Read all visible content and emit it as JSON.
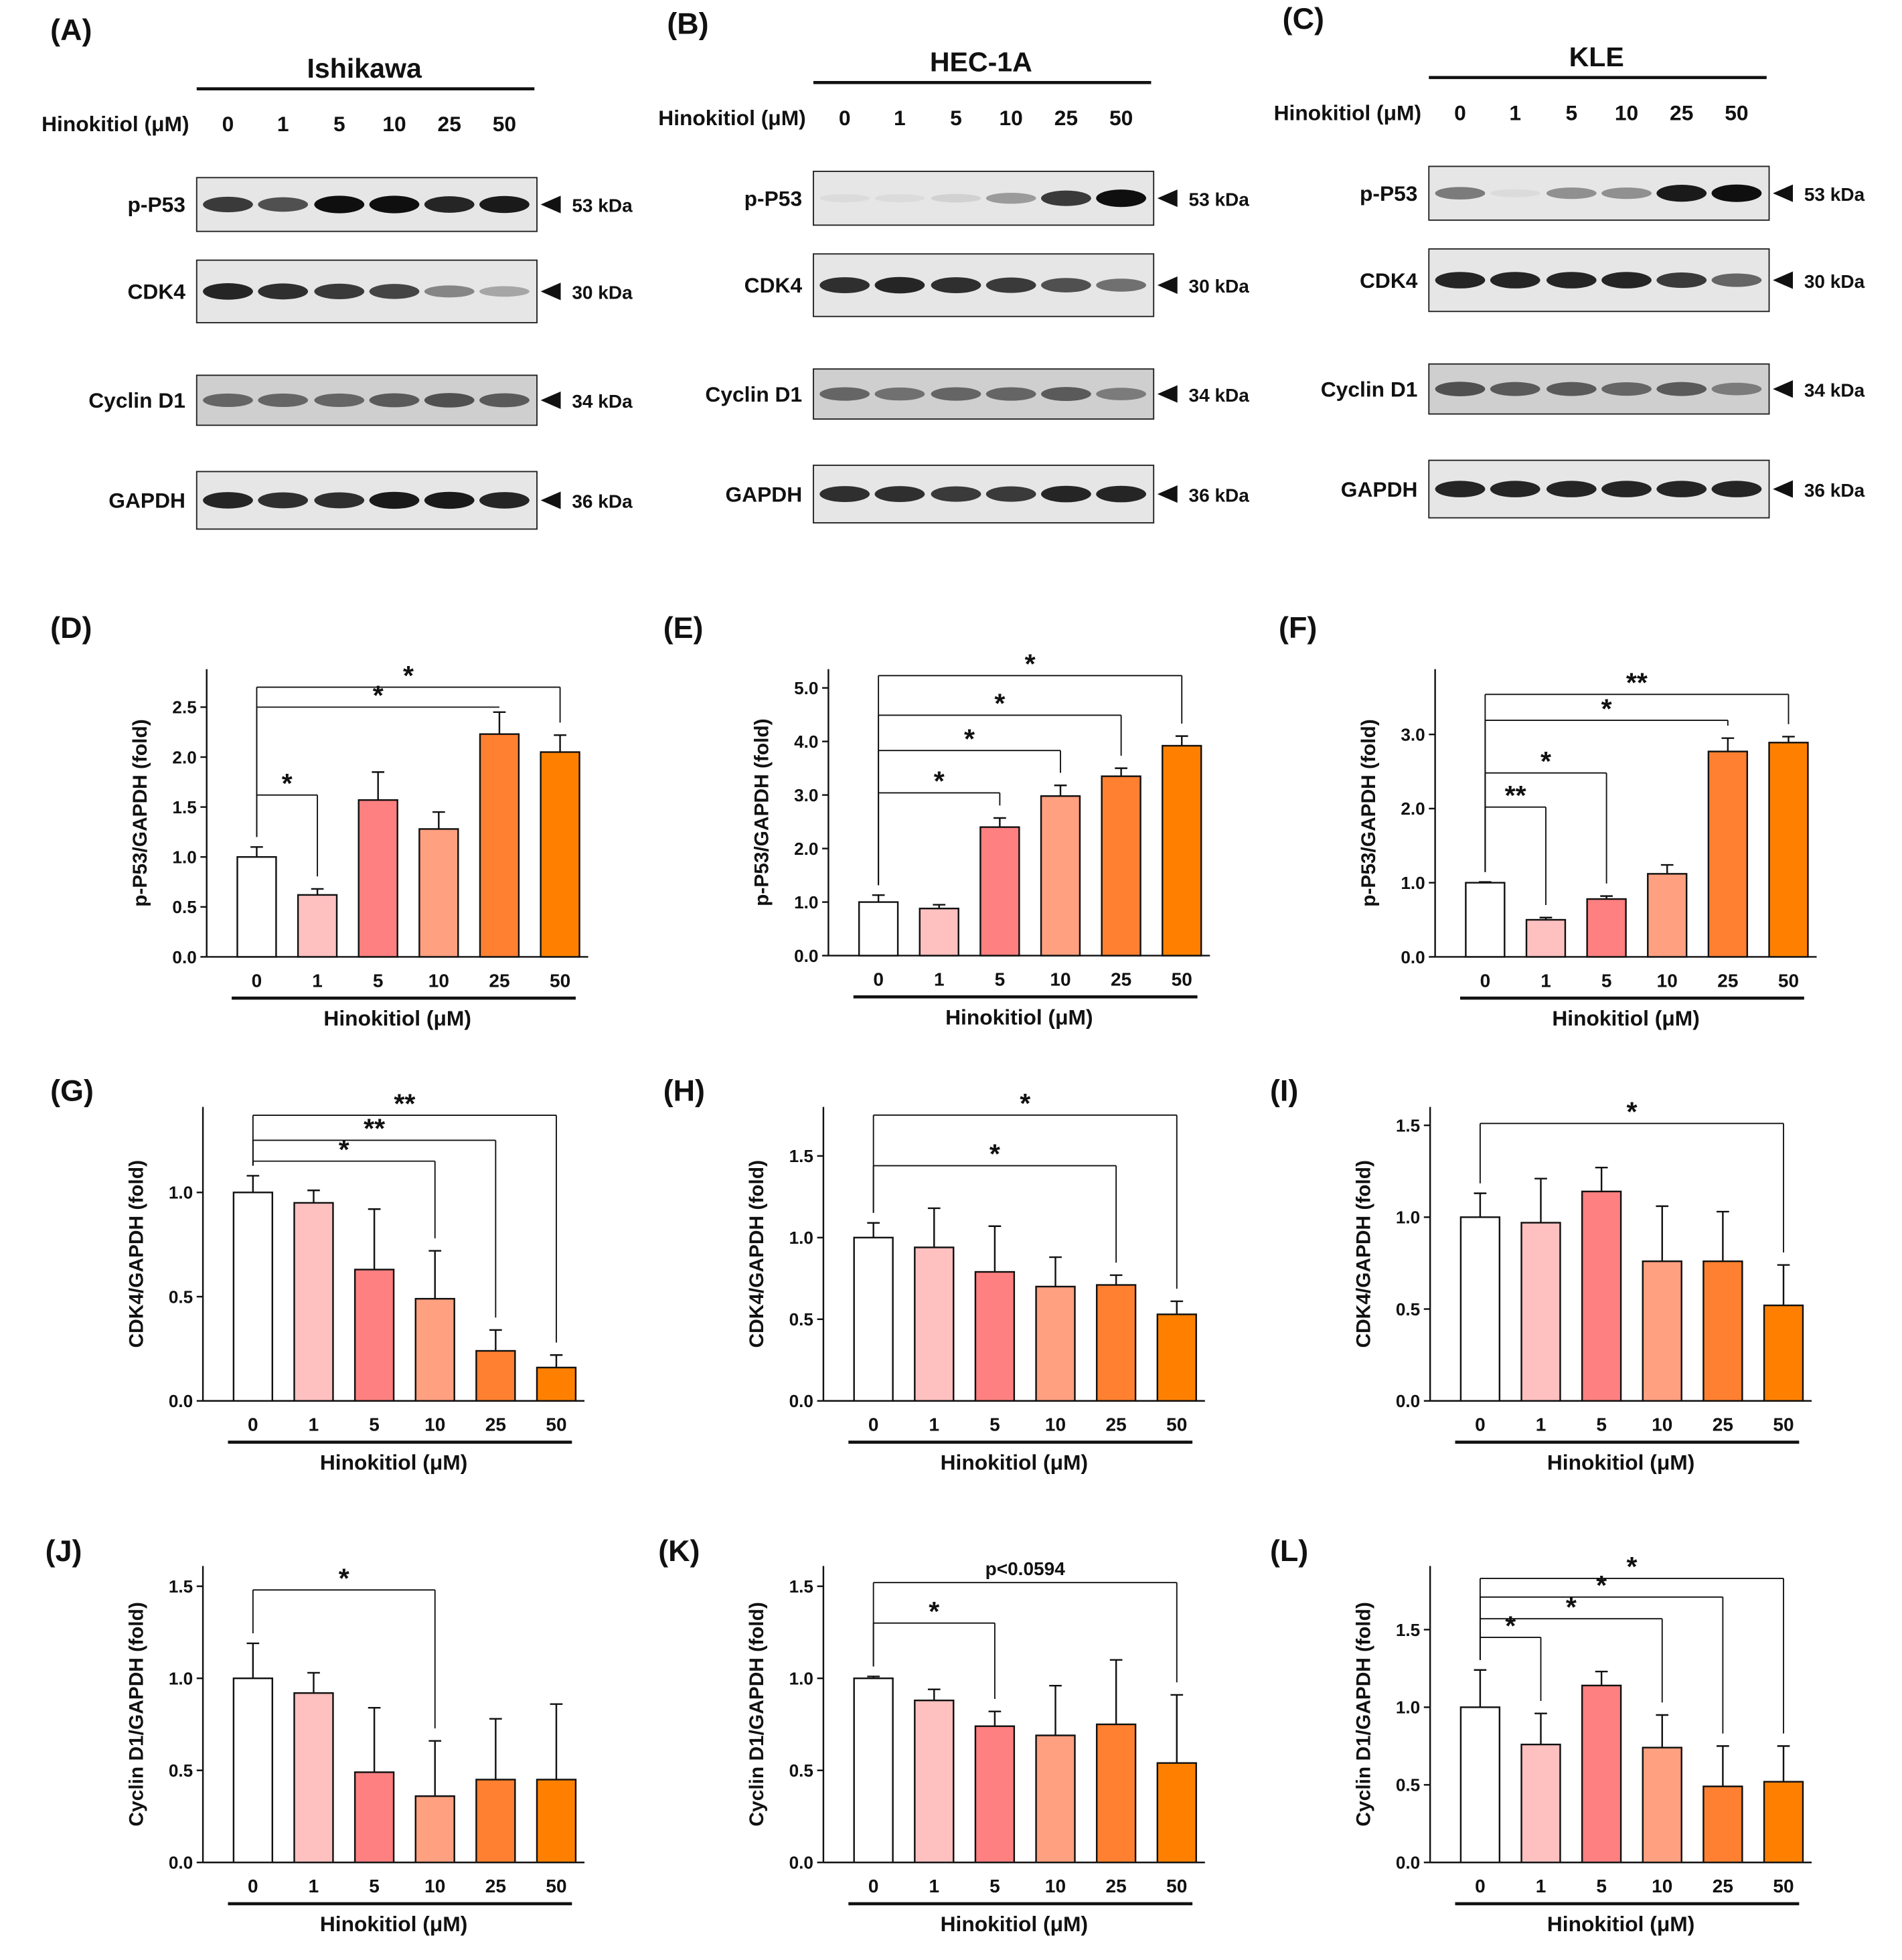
{
  "colors": [
    "#FFFFFF",
    "#FFC0C0",
    "#FF8080",
    "#FFA080",
    "#FF8030",
    "#FF8000"
  ],
  "blots": [
    {
      "panel": "(A)",
      "cell_line": "Ishikawa",
      "dose_label": "Hinokitiol (μM)",
      "doses": [
        "0",
        "1",
        "5",
        "10",
        "25",
        "50"
      ],
      "rows": [
        {
          "protein": "p-P53",
          "size": "53 kDa",
          "band_intensity": [
            0.8,
            0.7,
            1,
            1,
            0.9,
            0.95
          ]
        },
        {
          "protein": "CDK4",
          "size": "30 kDa",
          "band_intensity": [
            0.9,
            0.85,
            0.8,
            0.75,
            0.45,
            0.3
          ]
        },
        {
          "protein": "Cyclin D1",
          "size": "34 kDa",
          "band_intensity": [
            0.6,
            0.6,
            0.6,
            0.65,
            0.7,
            0.65
          ]
        },
        {
          "protein": "GAPDH",
          "size": "36 kDa",
          "band_intensity": [
            0.9,
            0.85,
            0.85,
            0.95,
            0.95,
            0.9
          ]
        }
      ]
    },
    {
      "panel": "(B)",
      "cell_line": "HEC-1A",
      "dose_label": "Hinokitiol (μM)",
      "doses": [
        "0",
        "1",
        "5",
        "10",
        "25",
        "50"
      ],
      "rows": [
        {
          "protein": "p-P53",
          "size": "53 kDa",
          "band_intensity": [
            0.05,
            0.05,
            0.1,
            0.35,
            0.8,
            1
          ]
        },
        {
          "protein": "CDK4",
          "size": "30 kDa",
          "band_intensity": [
            0.85,
            0.9,
            0.85,
            0.8,
            0.7,
            0.55
          ]
        },
        {
          "protein": "Cyclin D1",
          "size": "34 kDa",
          "band_intensity": [
            0.6,
            0.55,
            0.6,
            0.6,
            0.65,
            0.5
          ]
        },
        {
          "protein": "GAPDH",
          "size": "36 kDa",
          "band_intensity": [
            0.85,
            0.85,
            0.8,
            0.8,
            0.9,
            0.9
          ]
        }
      ]
    },
    {
      "panel": "(C)",
      "cell_line": "KLE",
      "dose_label": "Hinokitiol (μM)",
      "doses": [
        "0",
        "1",
        "5",
        "10",
        "25",
        "50"
      ],
      "rows": [
        {
          "protein": "p-P53",
          "size": "53 kDa",
          "band_intensity": [
            0.5,
            0.05,
            0.4,
            0.4,
            0.95,
            1
          ]
        },
        {
          "protein": "CDK4",
          "size": "30 kDa",
          "band_intensity": [
            0.9,
            0.9,
            0.9,
            0.9,
            0.8,
            0.6
          ]
        },
        {
          "protein": "Cyclin D1",
          "size": "34 kDa",
          "band_intensity": [
            0.7,
            0.65,
            0.65,
            0.6,
            0.65,
            0.5
          ]
        },
        {
          "protein": "GAPDH",
          "size": "36 kDa",
          "band_intensity": [
            0.9,
            0.9,
            0.9,
            0.9,
            0.9,
            0.9
          ]
        }
      ]
    }
  ],
  "chart_data": [
    {
      "panel": "(D)",
      "type": "bar",
      "categories": [
        "0",
        "1",
        "5",
        "10",
        "25",
        "50"
      ],
      "values": [
        1.0,
        0.62,
        1.57,
        1.28,
        2.23,
        2.05
      ],
      "errors": [
        0.1,
        0.06,
        0.28,
        0.17,
        0.22,
        0.17
      ],
      "ylabel": "p-P53/GAPDH (fold)",
      "xlabel": "Hinokitiol (μM)",
      "ylim": [
        0,
        2.88
      ],
      "yticks": [
        "0.0",
        "0.5",
        "1.0",
        "1.5",
        "2.0",
        "2.5"
      ],
      "ytick_values": [
        0,
        0.5,
        1,
        1.5,
        2,
        2.5
      ],
      "significance": [
        {
          "from": 0,
          "to": 1,
          "y": 1.62,
          "label": "*"
        },
        {
          "from": 0,
          "to": 4,
          "y": 2.5,
          "label": "*",
          "open": true
        },
        {
          "from": 0,
          "to": 5,
          "y": 2.7,
          "label": "*"
        }
      ]
    },
    {
      "panel": "(E)",
      "type": "bar",
      "categories": [
        "0",
        "1",
        "5",
        "10",
        "25",
        "50"
      ],
      "values": [
        1.0,
        0.88,
        2.4,
        2.98,
        3.35,
        3.92
      ],
      "errors": [
        0.13,
        0.07,
        0.17,
        0.2,
        0.15,
        0.18
      ],
      "ylabel": "p-P53/GAPDH (fold)",
      "xlabel": "Hinokitiol (μM)",
      "ylim": [
        0,
        5.35
      ],
      "yticks": [
        "0.0",
        "1.0",
        "2.0",
        "3.0",
        "4.0",
        "5.0"
      ],
      "ytick_values": [
        0,
        1,
        2,
        3,
        4,
        5
      ],
      "significance": [
        {
          "from": 0,
          "to": 2,
          "y": 3.04,
          "label": "*"
        },
        {
          "from": 0,
          "to": 3,
          "y": 3.83,
          "label": "*"
        },
        {
          "from": 0,
          "to": 4,
          "y": 4.49,
          "label": "*"
        },
        {
          "from": 0,
          "to": 5,
          "y": 5.23,
          "label": "*"
        }
      ]
    },
    {
      "panel": "(F)",
      "type": "bar",
      "categories": [
        "0",
        "1",
        "5",
        "10",
        "25",
        "50"
      ],
      "values": [
        1.0,
        0.5,
        0.78,
        1.12,
        2.77,
        2.89
      ],
      "errors": [
        0.01,
        0.03,
        0.04,
        0.12,
        0.18,
        0.08
      ],
      "ylabel": "p-P53/GAPDH (fold)",
      "xlabel": "Hinokitiol (μM)",
      "ylim": [
        0,
        3.88
      ],
      "yticks": [
        "0.0",
        "1.0",
        "2.0",
        "3.0"
      ],
      "ytick_values": [
        0,
        1,
        2,
        3
      ],
      "significance": [
        {
          "from": 0,
          "to": 1,
          "y": 2.02,
          "label": "**"
        },
        {
          "from": 0,
          "to": 2,
          "y": 2.48,
          "label": "*"
        },
        {
          "from": 0,
          "to": 4,
          "y": 3.19,
          "label": "*"
        },
        {
          "from": 0,
          "to": 5,
          "y": 3.54,
          "label": "**"
        }
      ]
    },
    {
      "panel": "(G)",
      "type": "bar",
      "categories": [
        "0",
        "1",
        "5",
        "10",
        "25",
        "50"
      ],
      "values": [
        1.0,
        0.95,
        0.63,
        0.49,
        0.24,
        0.16
      ],
      "errors": [
        0.08,
        0.06,
        0.29,
        0.23,
        0.1,
        0.06
      ],
      "ylabel": "CDK4/GAPDH (fold)",
      "xlabel": "Hinokitiol (μM)",
      "ylim": [
        0,
        1.41
      ],
      "yticks": [
        "0.0",
        "0.5",
        "1.0"
      ],
      "ytick_values": [
        0,
        0.5,
        1
      ],
      "significance": [
        {
          "from": 0,
          "to": 3,
          "y": 1.15,
          "label": "*"
        },
        {
          "from": 0,
          "to": 4,
          "y": 1.25,
          "label": "**"
        },
        {
          "from": 0,
          "to": 5,
          "y": 1.37,
          "label": "**"
        }
      ]
    },
    {
      "panel": "(H)",
      "type": "bar",
      "categories": [
        "0",
        "1",
        "5",
        "10",
        "25",
        "50"
      ],
      "values": [
        1.0,
        0.94,
        0.79,
        0.7,
        0.71,
        0.53
      ],
      "errors": [
        0.09,
        0.24,
        0.28,
        0.18,
        0.06,
        0.08
      ],
      "ylabel": "CDK4/GAPDH (fold)",
      "xlabel": "Hinokitiol (μM)",
      "ylim": [
        0,
        1.8
      ],
      "yticks": [
        "0.0",
        "0.5",
        "1.0",
        "1.5"
      ],
      "ytick_values": [
        0,
        0.5,
        1,
        1.5
      ],
      "significance": [
        {
          "from": 0,
          "to": 4,
          "y": 1.44,
          "label": "*"
        },
        {
          "from": 0,
          "to": 5,
          "y": 1.75,
          "label": "*"
        }
      ]
    },
    {
      "panel": "(I)",
      "type": "bar",
      "categories": [
        "0",
        "1",
        "5",
        "10",
        "25",
        "50"
      ],
      "values": [
        1.0,
        0.97,
        1.14,
        0.76,
        0.76,
        0.52
      ],
      "errors": [
        0.13,
        0.24,
        0.13,
        0.3,
        0.27,
        0.22
      ],
      "ylabel": "CDK4/GAPDH (fold)",
      "xlabel": "Hinokitiol (μM)",
      "ylim": [
        0,
        1.6
      ],
      "yticks": [
        "0.0",
        "0.5",
        "1.0",
        "1.5"
      ],
      "ytick_values": [
        0,
        0.5,
        1,
        1.5
      ],
      "significance": [
        {
          "from": 0,
          "to": 5,
          "y": 1.51,
          "label": "*"
        }
      ]
    },
    {
      "panel": "(J)",
      "type": "bar",
      "categories": [
        "0",
        "1",
        "5",
        "10",
        "25",
        "50"
      ],
      "values": [
        1.0,
        0.92,
        0.49,
        0.36,
        0.45,
        0.45
      ],
      "errors": [
        0.19,
        0.11,
        0.35,
        0.3,
        0.33,
        0.41
      ],
      "ylabel": "Cyclin D1/GAPDH (fold)",
      "xlabel": "Hinokitiol (μM)",
      "ylim": [
        0,
        1.61
      ],
      "yticks": [
        "0.0",
        "0.5",
        "1.0",
        "1.5"
      ],
      "ytick_values": [
        0,
        0.5,
        1,
        1.5
      ],
      "significance": [
        {
          "from": 0,
          "to": 3,
          "y": 1.48,
          "label": "*"
        }
      ]
    },
    {
      "panel": "(K)",
      "type": "bar",
      "categories": [
        "0",
        "1",
        "5",
        "10",
        "25",
        "50"
      ],
      "values": [
        1.0,
        0.88,
        0.74,
        0.69,
        0.75,
        0.54
      ],
      "errors": [
        0.01,
        0.06,
        0.08,
        0.27,
        0.35,
        0.37
      ],
      "ylabel": "Cyclin D1/GAPDH (fold)",
      "xlabel": "Hinokitiol (μM)",
      "ylim": [
        0,
        1.61
      ],
      "yticks": [
        "0.0",
        "0.5",
        "1.0",
        "1.5"
      ],
      "ytick_values": [
        0,
        0.5,
        1,
        1.5
      ],
      "significance": [
        {
          "from": 0,
          "to": 2,
          "y": 1.3,
          "label": "*"
        },
        {
          "from": 0,
          "to": 5,
          "y": 1.52,
          "label": "p<0.0594"
        }
      ]
    },
    {
      "panel": "(L)",
      "type": "bar",
      "categories": [
        "0",
        "1",
        "5",
        "10",
        "25",
        "50"
      ],
      "values": [
        1.0,
        0.76,
        1.14,
        0.74,
        0.49,
        0.52
      ],
      "errors": [
        0.24,
        0.2,
        0.09,
        0.21,
        0.26,
        0.23
      ],
      "ylabel": "Cyclin D1/GAPDH (fold)",
      "xlabel": "Hinokitiol (μM)",
      "ylim": [
        0,
        1.91
      ],
      "yticks": [
        "0.0",
        "0.5",
        "1.0",
        "1.5"
      ],
      "ytick_values": [
        0,
        0.5,
        1,
        1.5
      ],
      "significance": [
        {
          "from": 0,
          "to": 1,
          "y": 1.45,
          "label": "*"
        },
        {
          "from": 0,
          "to": 3,
          "y": 1.57,
          "label": "*"
        },
        {
          "from": 0,
          "to": 4,
          "y": 1.71,
          "label": "*"
        },
        {
          "from": 0,
          "to": 5,
          "y": 1.83,
          "label": "*"
        }
      ]
    }
  ]
}
